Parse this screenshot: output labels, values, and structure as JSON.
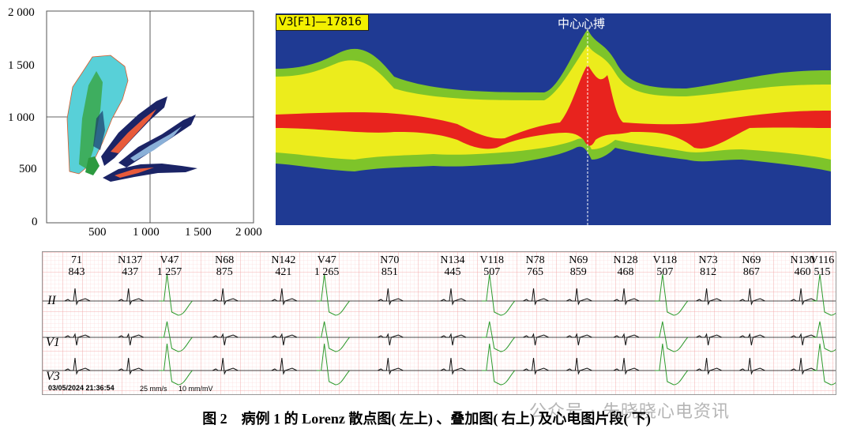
{
  "lorenz": {
    "y_ticks": [
      "2 000",
      "1 500",
      "1 000",
      "500",
      "0"
    ],
    "x_ticks": [
      "500",
      "1 000",
      "1 500",
      "2 000"
    ],
    "ylim": [
      0,
      2000
    ],
    "xlim": [
      0,
      2000
    ]
  },
  "overlay": {
    "title": "V3[F1]—17816",
    "center_label": "中心心搏"
  },
  "ecg": {
    "beats": [
      {
        "type": "",
        "hr": "71",
        "rr": "843"
      },
      {
        "type": "N",
        "hr": "137",
        "rr": "437"
      },
      {
        "type": "V",
        "hr": "47",
        "rr": "1 257"
      },
      {
        "type": "N",
        "hr": "68",
        "rr": "875"
      },
      {
        "type": "N",
        "hr": "142",
        "rr": "421"
      },
      {
        "type": "V",
        "hr": "47",
        "rr": "1 265"
      },
      {
        "type": "N",
        "hr": "70",
        "rr": "851"
      },
      {
        "type": "N",
        "hr": "134",
        "rr": "445"
      },
      {
        "type": "V",
        "hr": "118",
        "rr": "507"
      },
      {
        "type": "N",
        "hr": "78",
        "rr": "765"
      },
      {
        "type": "N",
        "hr": "69",
        "rr": "859"
      },
      {
        "type": "N",
        "hr": "128",
        "rr": "468"
      },
      {
        "type": "V",
        "hr": "118",
        "rr": "507"
      },
      {
        "type": "N",
        "hr": "73",
        "rr": "812"
      },
      {
        "type": "N",
        "hr": "69",
        "rr": "867"
      },
      {
        "type": "N",
        "hr": "130",
        "rr": "460"
      },
      {
        "type": "V",
        "hr": "116",
        "rr": "515"
      }
    ],
    "leads": [
      "II",
      "V1",
      "V3"
    ],
    "timestamp": "03/05/2024 21:36:54",
    "speed": "25 mm/s",
    "gain": "10 mm/mV"
  },
  "caption": "图 2　病例 1 的 Lorenz 散点图( 左上) 、叠加图( 右上) 及心电图片段( 下)",
  "watermark": "公众号 · 朱晓晓心电资讯",
  "colors": {
    "overlay_bg": "#1f3a93",
    "band_outer": "#7ec42a",
    "band_mid": "#ecec1c",
    "band_core": "#e8231e",
    "ecg_grid_major": "#f0a0a0",
    "ecg_grid_minor": "#fbd8d8",
    "ecg_normal": "#111111",
    "ecg_ventricular": "#2c9a2c"
  }
}
